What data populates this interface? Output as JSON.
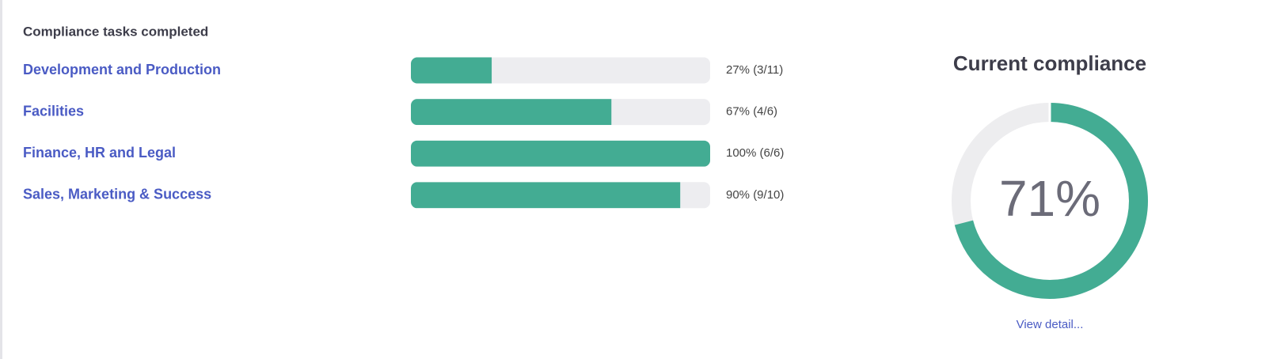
{
  "tasks": {
    "title": "Compliance tasks completed",
    "xlim": [
      0,
      100
    ],
    "rows": [
      {
        "name": "Development and Production",
        "value": 27,
        "label": "27% (3/11)"
      },
      {
        "name": "Facilities",
        "value": 67,
        "label": "67% (4/6)"
      },
      {
        "name": "Finance, HR and Legal",
        "value": 100,
        "label": "100% (6/6)"
      },
      {
        "name": "Sales, Marketing & Success",
        "value": 90,
        "label": "90% (9/10)"
      }
    ]
  },
  "compliance": {
    "title": "Current compliance",
    "value": 71,
    "label": "71%",
    "xlim": [
      0,
      100
    ],
    "link": "View detail..."
  }
}
